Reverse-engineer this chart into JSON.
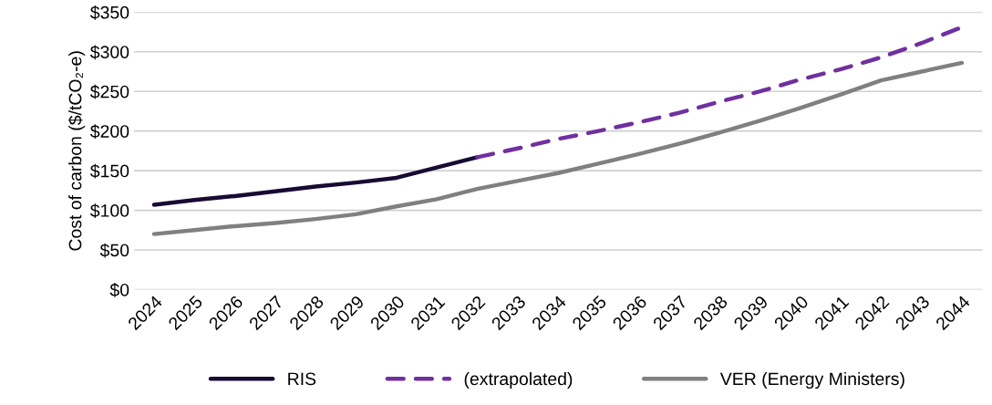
{
  "chart_data": {
    "type": "line",
    "ylabel": "Cost of carbon ($/tCO₂-e)",
    "categories": [
      "2024",
      "2025",
      "2026",
      "2027",
      "2028",
      "2029",
      "2030",
      "2031",
      "2032",
      "2033",
      "2034",
      "2035",
      "2036",
      "2037",
      "2038",
      "2039",
      "2040",
      "2041",
      "2042",
      "2043",
      "2044"
    ],
    "series": [
      {
        "name": "RIS",
        "color": "#170a33",
        "line_style": "solid",
        "values": [
          107,
          113,
          118,
          124,
          130,
          135,
          141,
          154,
          167,
          null,
          null,
          null,
          null,
          null,
          null,
          null,
          null,
          null,
          null,
          null,
          null
        ]
      },
      {
        "name": "(extrapolated)",
        "color": "#7030a0",
        "line_style": "dashed",
        "values": [
          null,
          null,
          null,
          null,
          null,
          null,
          null,
          null,
          167,
          178,
          190,
          200,
          211,
          223,
          237,
          250,
          265,
          278,
          293,
          311,
          331
        ]
      },
      {
        "name": "VER (Energy Ministers)",
        "color": "#808080",
        "line_style": "solid",
        "values": [
          70,
          75,
          80,
          84,
          89,
          95,
          105,
          114,
          127,
          137,
          147,
          159,
          171,
          184,
          198,
          213,
          229,
          246,
          264,
          275,
          286
        ]
      }
    ],
    "ylim": [
      0,
      350
    ],
    "yticks": [
      {
        "value": 0,
        "label": "$0"
      },
      {
        "value": 50,
        "label": "$50"
      },
      {
        "value": 100,
        "label": "$100"
      },
      {
        "value": 150,
        "label": "$150"
      },
      {
        "value": 200,
        "label": "$200"
      },
      {
        "value": 250,
        "label": "$250"
      },
      {
        "value": 300,
        "label": "$300"
      },
      {
        "value": 350,
        "label": "$350"
      }
    ],
    "grid": "y",
    "legend": "bottom",
    "marker": "none"
  }
}
